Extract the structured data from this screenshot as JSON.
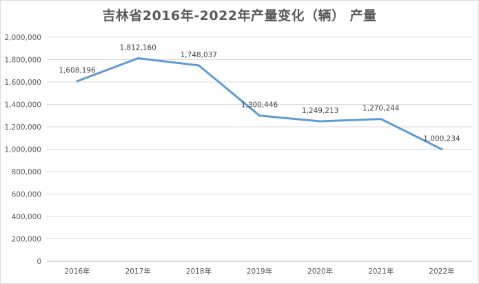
{
  "chart_data": {
    "type": "line",
    "title": "吉林省2016年-2022年产量变化（辆） 产量",
    "categories": [
      "2016年",
      "2017年",
      "2018年",
      "2019年",
      "2020年",
      "2021年",
      "2022年"
    ],
    "series": [
      {
        "values": [
          1608196,
          1812160,
          1748037,
          1300446,
          1249213,
          1270244,
          1000234
        ],
        "labels": [
          "1,608,196",
          "1,812,160",
          "1,748,037",
          "1,300,446",
          "1,249,213",
          "1,270,244",
          "1,000,234"
        ],
        "color": "#5b9bd5"
      }
    ],
    "yticks": [
      0,
      200000,
      400000,
      600000,
      800000,
      1000000,
      1200000,
      1400000,
      1600000,
      1800000,
      2000000
    ],
    "ytick_labels": [
      "0",
      "200,000",
      "400,000",
      "600,000",
      "800,000",
      "1,000,000",
      "1,200,000",
      "1,400,000",
      "1,600,000",
      "1,800,000",
      "2,000,000"
    ],
    "ylim": [
      0,
      2000000
    ],
    "grid": true,
    "legend": "none",
    "gridline_color": "#d9d9d9"
  }
}
